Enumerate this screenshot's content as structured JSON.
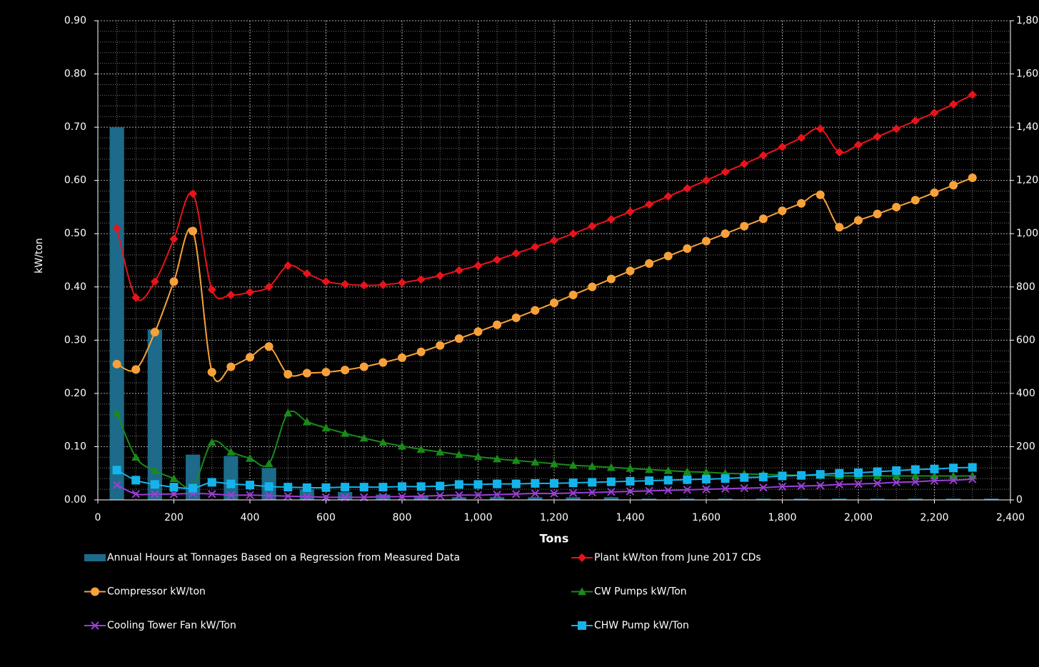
{
  "chart_data": {
    "type": "line",
    "xlabel": "Tons",
    "ylabel": "kW/ton",
    "xlim": [
      0,
      2400
    ],
    "xticks": [
      0,
      200,
      400,
      600,
      800,
      {
        "value": 1000,
        "label": "1,000"
      },
      {
        "value": 1200,
        "label": "1,200"
      },
      {
        "value": 1400,
        "label": "1,400"
      },
      {
        "value": 1600,
        "label": "1,600"
      },
      {
        "value": 1800,
        "label": "1,800"
      },
      {
        "value": 2000,
        "label": "2,000"
      },
      {
        "value": 2200,
        "label": "2,200"
      },
      {
        "value": 2400,
        "label": "2,400"
      }
    ],
    "ylim": [
      0,
      0.9
    ],
    "yticks": [
      {
        "value": 0,
        "label": "0.00"
      },
      {
        "value": 0.1,
        "label": "0.10"
      },
      {
        "value": 0.2,
        "label": "0.20"
      },
      {
        "value": 0.3,
        "label": "0.30"
      },
      {
        "value": 0.4,
        "label": "0.40"
      },
      {
        "value": 0.5,
        "label": "0.50"
      },
      {
        "value": 0.6,
        "label": "0.60"
      },
      {
        "value": 0.7,
        "label": "0.70"
      },
      {
        "value": 0.8,
        "label": "0.80"
      },
      {
        "value": 0.9,
        "label": "0.90"
      }
    ],
    "y2lim": [
      0,
      1800
    ],
    "y2ticks": [
      0,
      200,
      400,
      600,
      800,
      {
        "value": 1000,
        "label": "1,000"
      },
      {
        "value": 1200,
        "label": "1,200"
      },
      {
        "value": 1400,
        "label": "1,400"
      },
      {
        "value": 1600,
        "label": "1,600"
      },
      {
        "value": 1800,
        "label": "1,800"
      }
    ],
    "grid": true,
    "x": [
      50,
      100,
      150,
      200,
      250,
      300,
      350,
      400,
      450,
      500,
      550,
      600,
      650,
      700,
      750,
      800,
      850,
      900,
      950,
      1000,
      1050,
      1100,
      1150,
      1200,
      1250,
      1300,
      1350,
      1400,
      1450,
      1500,
      1550,
      1600,
      1650,
      1700,
      1750,
      1800,
      1850,
      1900,
      1950,
      2000,
      2050,
      2100,
      2150,
      2200,
      2250,
      2300
    ],
    "series": [
      {
        "name": "Annual Hours at Tonnages Based on a Regression from Measured Data",
        "type": "bar",
        "axis": "y2",
        "color": "#1d6a8a",
        "x": [
          50,
          150,
          250,
          350,
          450,
          550,
          650,
          750,
          850,
          950,
          1050,
          1150,
          1250,
          1350,
          1450,
          1550,
          1650,
          1750,
          1850,
          1950,
          2050,
          2150,
          2250,
          2350
        ],
        "values": [
          1400,
          640,
          170,
          165,
          120,
          40,
          30,
          20,
          15,
          10,
          10,
          10,
          10,
          10,
          5,
          5,
          5,
          5,
          5,
          5,
          5,
          5,
          5,
          5
        ]
      },
      {
        "name": "Plant kW/ton from June 2017 CDs",
        "color": "#e8141b",
        "marker": "diamond",
        "values": [
          0.51,
          0.38,
          0.41,
          0.49,
          0.575,
          0.395,
          0.385,
          0.39,
          0.4,
          0.44,
          0.425,
          0.41,
          0.405,
          0.403,
          0.404,
          0.408,
          0.414,
          0.421,
          0.431,
          0.44,
          0.451,
          0.463,
          0.475,
          0.487,
          0.5,
          0.514,
          0.527,
          0.541,
          0.555,
          0.57,
          0.585,
          0.6,
          0.616,
          0.631,
          0.647,
          0.663,
          0.68,
          0.697,
          0.653,
          0.667,
          0.682,
          0.697,
          0.712,
          0.727,
          0.743,
          0.761
        ]
      },
      {
        "name": "Compressor kW/ton",
        "color": "#f7a13a",
        "marker": "circle",
        "values": [
          0.255,
          0.245,
          0.315,
          0.41,
          0.505,
          0.24,
          0.25,
          0.268,
          0.288,
          0.236,
          0.238,
          0.24,
          0.244,
          0.25,
          0.258,
          0.267,
          0.278,
          0.29,
          0.303,
          0.316,
          0.329,
          0.342,
          0.356,
          0.37,
          0.385,
          0.4,
          0.415,
          0.43,
          0.444,
          0.458,
          0.472,
          0.486,
          0.5,
          0.514,
          0.528,
          0.543,
          0.557,
          0.573,
          0.512,
          0.525,
          0.537,
          0.55,
          0.563,
          0.577,
          0.591,
          0.605
        ]
      },
      {
        "name": "CW Pumps kW/Ton",
        "color": "#1a8a1a",
        "marker": "triangle",
        "values": [
          0.163,
          0.08,
          0.055,
          0.04,
          0.025,
          0.108,
          0.09,
          0.078,
          0.068,
          0.163,
          0.147,
          0.135,
          0.125,
          0.116,
          0.108,
          0.101,
          0.095,
          0.09,
          0.085,
          0.081,
          0.077,
          0.074,
          0.071,
          0.068,
          0.065,
          0.063,
          0.061,
          0.059,
          0.057,
          0.055,
          0.053,
          0.052,
          0.05,
          0.049,
          0.048,
          0.047,
          0.046,
          0.046,
          0.045,
          0.045,
          0.045,
          0.045,
          0.045,
          0.045,
          0.045,
          0.045
        ]
      },
      {
        "name": "Cooling Tower Fan kW/Ton",
        "color": "#9b3fd6",
        "marker": "x",
        "values": [
          0.028,
          0.011,
          0.011,
          0.011,
          0.012,
          0.011,
          0.009,
          0.009,
          0.008,
          0.007,
          0.006,
          0.005,
          0.005,
          0.005,
          0.006,
          0.006,
          0.007,
          0.008,
          0.009,
          0.009,
          0.01,
          0.011,
          0.012,
          0.012,
          0.013,
          0.014,
          0.015,
          0.016,
          0.017,
          0.018,
          0.019,
          0.02,
          0.021,
          0.022,
          0.023,
          0.025,
          0.026,
          0.027,
          0.029,
          0.03,
          0.031,
          0.033,
          0.034,
          0.036,
          0.037,
          0.039
        ]
      },
      {
        "name": "CHW Pump kW/Ton",
        "color": "#14b4ea",
        "marker": "square",
        "values": [
          0.056,
          0.037,
          0.029,
          0.024,
          0.022,
          0.033,
          0.03,
          0.028,
          0.025,
          0.024,
          0.023,
          0.023,
          0.024,
          0.024,
          0.024,
          0.025,
          0.025,
          0.026,
          0.029,
          0.029,
          0.03,
          0.03,
          0.031,
          0.031,
          0.032,
          0.033,
          0.034,
          0.035,
          0.036,
          0.037,
          0.038,
          0.039,
          0.04,
          0.042,
          0.043,
          0.045,
          0.046,
          0.048,
          0.05,
          0.051,
          0.053,
          0.055,
          0.057,
          0.058,
          0.06,
          0.061
        ]
      }
    ]
  }
}
